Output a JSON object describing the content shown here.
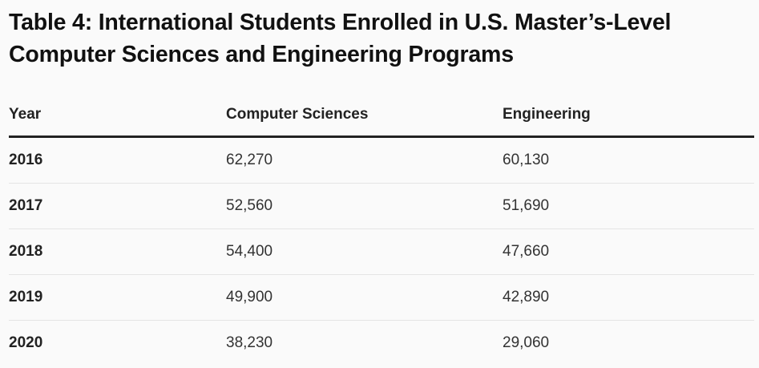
{
  "title": "Table 4: International Students Enrolled in U.S. Master’s-Level Computer Sciences and Engineering Programs",
  "table": {
    "headers": [
      "Year",
      "Computer Sciences",
      "Engineering"
    ],
    "rows": [
      [
        "2016",
        "62,270",
        "60,130"
      ],
      [
        "2017",
        "52,560",
        "51,690"
      ],
      [
        "2018",
        "54,400",
        "47,660"
      ],
      [
        "2019",
        "49,900",
        "42,890"
      ],
      [
        "2020",
        "38,230",
        "29,060"
      ]
    ]
  }
}
